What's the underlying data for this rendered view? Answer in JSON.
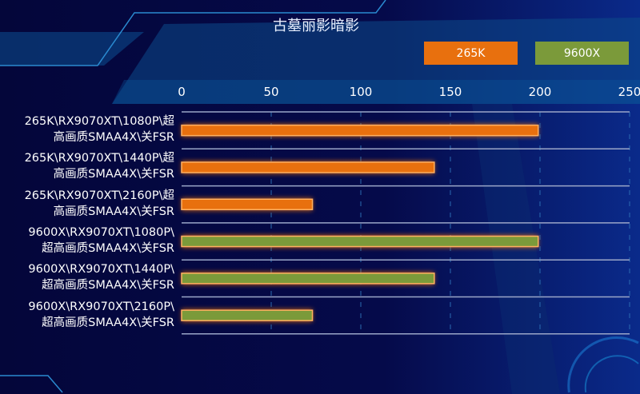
{
  "chart_data": {
    "type": "bar",
    "orientation": "horizontal",
    "title": "古墓丽影暗影",
    "categories": [
      [
        "265K\\RX9070XT\\1080P\\超",
        "高画质SMAA4X\\关FSR"
      ],
      [
        "265K\\RX9070XT\\1440P\\超",
        "高画质SMAA4X\\关FSR"
      ],
      [
        "265K\\RX9070XT\\2160P\\超",
        "高画质SMAA4X\\关FSR"
      ],
      [
        "9600X\\RX9070XT\\1080P\\",
        "超高画质SMAA4X\\关FSR"
      ],
      [
        "9600X\\RX9070XT\\1440P\\",
        "超高画质SMAA4X\\关FSR"
      ],
      [
        "9600X\\RX9070XT\\2160P\\",
        "超高画质SMAA4X\\关FSR"
      ]
    ],
    "values": [
      199,
      141,
      73,
      199,
      141,
      73
    ],
    "bar_series": [
      "265K",
      "265K",
      "265K",
      "9600X",
      "9600X",
      "9600X"
    ],
    "legend": [
      {
        "name": "265K",
        "color": "#e8700e"
      },
      {
        "name": "9600X",
        "color": "#7b9a3a"
      }
    ],
    "xlim": [
      0,
      250
    ],
    "xticks": [
      "0",
      "50",
      "100",
      "150",
      "200",
      "250"
    ],
    "xaxis_position": "top",
    "legend_position": "top-right",
    "grid": true
  }
}
